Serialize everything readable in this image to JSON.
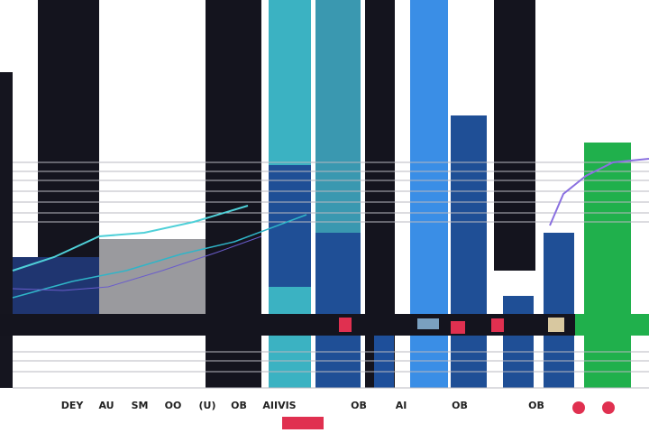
{
  "labels": [
    "DEY",
    "AU",
    "SM",
    "OO",
    "(U)",
    "OB",
    "AIIVIS",
    "OB",
    "AI",
    "OB",
    "OB"
  ]
}
